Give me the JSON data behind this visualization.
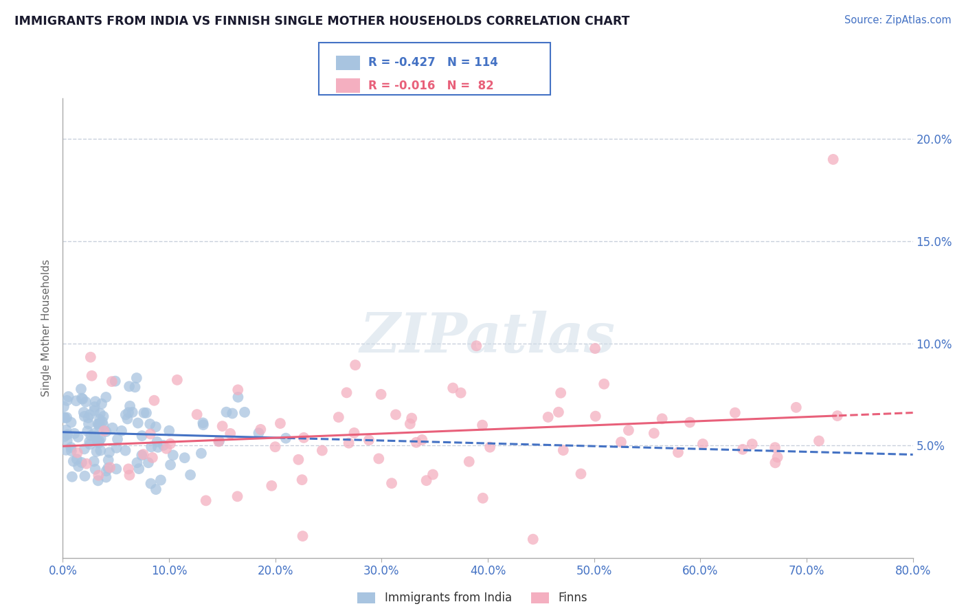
{
  "title": "IMMIGRANTS FROM INDIA VS FINNISH SINGLE MOTHER HOUSEHOLDS CORRELATION CHART",
  "source_text": "Source: ZipAtlas.com",
  "ylabel": "Single Mother Households",
  "watermark": "ZIPatlas",
  "series1_label": "Immigrants from India",
  "series1_R": "-0.427",
  "series1_N": "114",
  "series1_color": "#a8c4e0",
  "series1_line_color": "#4472c4",
  "series2_label": "Finns",
  "series2_R": "-0.016",
  "series2_N": "82",
  "series2_color": "#f4afc0",
  "series2_line_color": "#e8607a",
  "xlim": [
    0.0,
    0.8
  ],
  "ylim": [
    -0.005,
    0.22
  ],
  "yticks": [
    0.0,
    0.05,
    0.1,
    0.15,
    0.2
  ],
  "ytick_labels": [
    "",
    "5.0%",
    "10.0%",
    "15.0%",
    "20.0%"
  ],
  "xtick_labels": [
    "0.0%",
    "10.0%",
    "20.0%",
    "30.0%",
    "40.0%",
    "50.0%",
    "60.0%",
    "70.0%",
    "80.0%"
  ],
  "xticks": [
    0.0,
    0.1,
    0.2,
    0.3,
    0.4,
    0.5,
    0.6,
    0.7,
    0.8
  ],
  "title_color": "#1a1a2e",
  "axis_color": "#4472c4",
  "grid_color": "#c8d0dc",
  "background_color": "#ffffff"
}
